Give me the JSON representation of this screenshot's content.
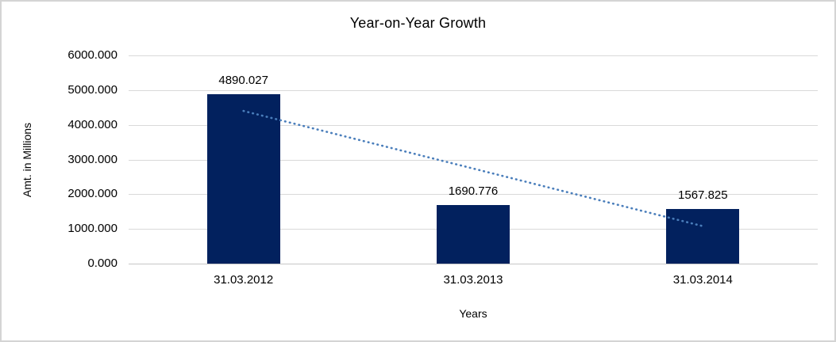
{
  "window": {
    "background_color": "#ffffff",
    "border_color": "#d4d4d4"
  },
  "chart_data": {
    "type": "bar",
    "title": "Year-on-Year Growth",
    "xlabel": "Years",
    "ylabel": "Amt. in Millions",
    "categories": [
      "31.03.2012",
      "31.03.2013",
      "31.03.2014"
    ],
    "values": [
      4890.027,
      1690.776,
      1567.825
    ],
    "value_labels": [
      "4890.027",
      "1690.776",
      "1567.825"
    ],
    "ylim": [
      0,
      6000
    ],
    "y_tick_labels": [
      "0.000",
      "1000.000",
      "2000.000",
      "3000.000",
      "4000.000",
      "5000.000",
      "6000.000"
    ],
    "grid": true,
    "legend": "none",
    "bar_color": "#02215e",
    "gridline_color": "#d9d9d9",
    "axis_line_color": "#c6c6c6",
    "trendline": {
      "type": "linear",
      "style": "dotted",
      "color": "#4a7ebb",
      "start_value": 4400,
      "end_value": 1080
    }
  }
}
